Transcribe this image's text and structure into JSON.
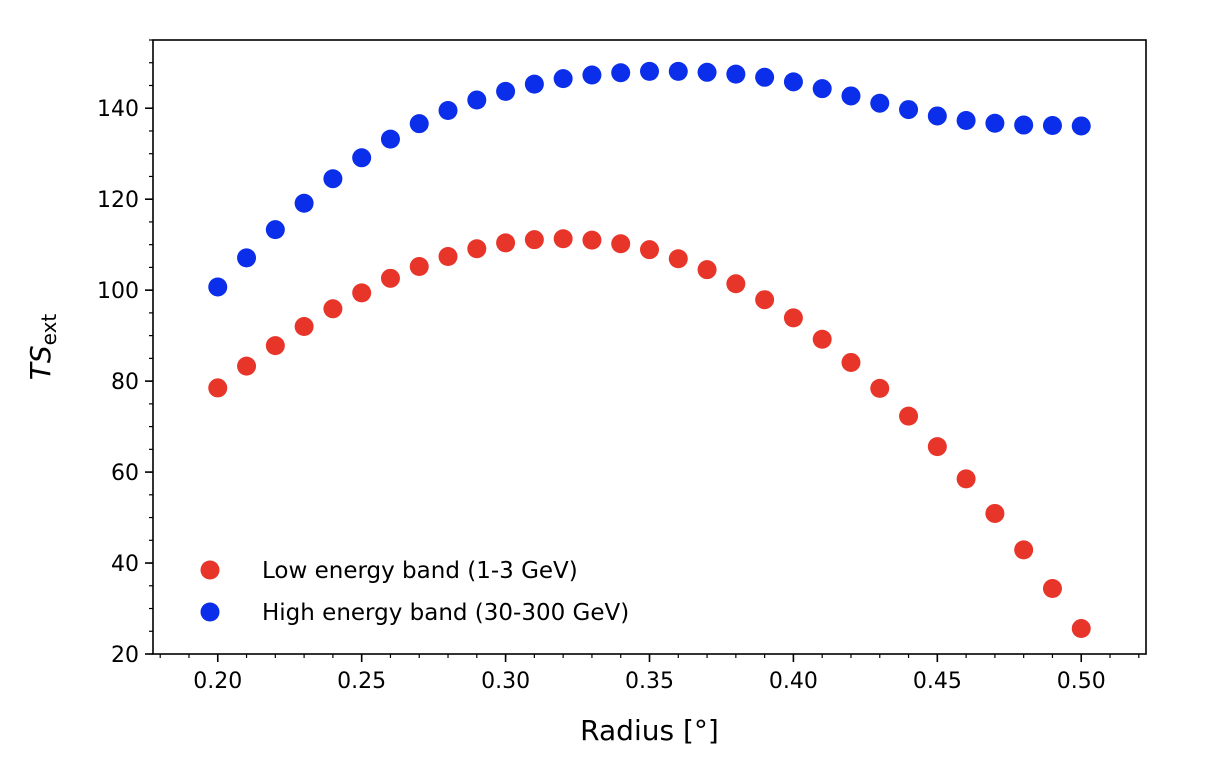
{
  "chart_data": {
    "type": "scatter",
    "title": "",
    "xlabel": "Radius [°]",
    "ylabel_main": "TS",
    "ylabel_sub": "ext",
    "xlim": [
      0.1775,
      0.5225
    ],
    "ylim": [
      20,
      155
    ],
    "xticks": [
      0.2,
      0.25,
      0.3,
      0.35,
      0.4,
      0.45,
      0.5
    ],
    "xtick_labels": [
      "0.20",
      "0.25",
      "0.30",
      "0.35",
      "0.40",
      "0.45",
      "0.50"
    ],
    "yticks": [
      20,
      40,
      60,
      80,
      100,
      120,
      140
    ],
    "ytick_labels": [
      "20",
      "40",
      "60",
      "80",
      "100",
      "120",
      "140"
    ],
    "x_minor_step": 0.01,
    "y_minor_step": 5,
    "grid": false,
    "legend_position": "lower-left",
    "x": [
      0.2,
      0.21,
      0.22,
      0.23,
      0.24,
      0.25,
      0.26,
      0.27,
      0.28,
      0.29,
      0.3,
      0.31,
      0.32,
      0.33,
      0.34,
      0.35,
      0.36,
      0.37,
      0.38,
      0.39,
      0.4,
      0.41,
      0.42,
      0.43,
      0.44,
      0.45,
      0.46,
      0.47,
      0.48,
      0.49,
      0.5
    ],
    "series": [
      {
        "name": "Low energy band (1-3 GeV)",
        "color": "#e8352a",
        "values": [
          78.5,
          83.3,
          87.8,
          92.0,
          95.9,
          99.4,
          102.6,
          105.2,
          107.4,
          109.1,
          110.4,
          111.1,
          111.3,
          111.0,
          110.2,
          108.9,
          106.9,
          104.5,
          101.4,
          97.9,
          93.9,
          89.2,
          84.1,
          78.4,
          72.3,
          65.6,
          58.5,
          50.9,
          42.9,
          34.4,
          25.6
        ]
      },
      {
        "name": "High energy band (30-300 GeV)",
        "color": "#0a2eea",
        "values": [
          100.7,
          107.1,
          113.3,
          119.1,
          124.5,
          129.1,
          133.2,
          136.6,
          139.5,
          141.8,
          143.7,
          145.3,
          146.5,
          147.3,
          147.8,
          148.1,
          148.1,
          147.9,
          147.5,
          146.8,
          145.8,
          144.3,
          142.7,
          141.1,
          139.7,
          138.3,
          137.3,
          136.7,
          136.3,
          136.2,
          136.1
        ]
      }
    ]
  }
}
